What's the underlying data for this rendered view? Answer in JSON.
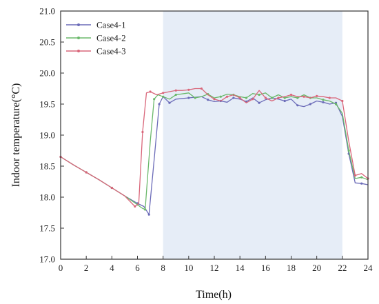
{
  "chart_data": {
    "type": "line",
    "title": "",
    "xlabel": "Time(h)",
    "ylabel": "Indoor temperature(°C)",
    "xlim": [
      0,
      24
    ],
    "ylim": [
      17.0,
      21.0
    ],
    "x_ticks": [
      0,
      2,
      4,
      6,
      8,
      10,
      12,
      14,
      16,
      18,
      20,
      22,
      24
    ],
    "y_ticks": [
      "17.0",
      "17.5",
      "18.0",
      "18.5",
      "19.0",
      "19.5",
      "20.0",
      "20.5",
      "21.0"
    ],
    "grid": false,
    "legend_position": "top-left",
    "shaded_region": {
      "x": [
        8,
        22
      ],
      "color": "#e6edf7"
    },
    "series": [
      {
        "name": "Case4-1",
        "color": "#6b6bb8",
        "x": [
          0,
          1,
          2,
          3,
          4,
          5,
          6,
          6.5,
          6.9,
          7.3,
          7.7,
          8,
          8.5,
          9,
          10,
          11,
          11.5,
          12,
          12.5,
          13,
          13.5,
          14,
          14.5,
          15,
          15.5,
          16,
          16.5,
          17,
          17.5,
          18,
          18.5,
          19,
          19.5,
          20,
          20.5,
          21,
          21.5,
          22,
          22.5,
          23,
          23.5,
          24
        ],
        "y": [
          18.65,
          18.52,
          18.4,
          18.28,
          18.15,
          18.02,
          17.9,
          17.85,
          17.72,
          18.6,
          19.5,
          19.62,
          19.52,
          19.58,
          19.6,
          19.62,
          19.57,
          19.54,
          19.55,
          19.53,
          19.6,
          19.58,
          19.54,
          19.6,
          19.52,
          19.57,
          19.6,
          19.58,
          19.55,
          19.58,
          19.48,
          19.46,
          19.5,
          19.55,
          19.53,
          19.5,
          19.52,
          19.3,
          18.7,
          18.23,
          18.22,
          18.2
        ]
      },
      {
        "name": "Case4-2",
        "color": "#6ab86a",
        "x": [
          0,
          1,
          2,
          3,
          4,
          5,
          6,
          6.3,
          6.6,
          7.0,
          7.3,
          7.6,
          8,
          8.5,
          9,
          10,
          10.5,
          11,
          11.5,
          12,
          12.5,
          13,
          13.5,
          14,
          14.5,
          15,
          15.5,
          16,
          16.5,
          17,
          17.5,
          18,
          18.5,
          19,
          19.5,
          20,
          20.5,
          21,
          21.5,
          22,
          22.5,
          23,
          23.5,
          24
        ],
        "y": [
          18.65,
          18.52,
          18.4,
          18.28,
          18.15,
          18.02,
          17.88,
          17.83,
          17.8,
          18.9,
          19.58,
          19.65,
          19.62,
          19.58,
          19.65,
          19.68,
          19.6,
          19.62,
          19.66,
          19.6,
          19.62,
          19.66,
          19.65,
          19.62,
          19.6,
          19.67,
          19.65,
          19.68,
          19.6,
          19.65,
          19.6,
          19.62,
          19.6,
          19.65,
          19.6,
          19.6,
          19.57,
          19.55,
          19.5,
          19.35,
          18.75,
          18.3,
          18.32,
          18.28
        ]
      },
      {
        "name": "Case4-3",
        "color": "#d9667a",
        "x": [
          0,
          1,
          2,
          3,
          4,
          5,
          5.8,
          6.1,
          6.4,
          6.7,
          7.0,
          7.5,
          8,
          8.5,
          9,
          9.5,
          10,
          10.5,
          11,
          11.5,
          12,
          12.5,
          13,
          13.5,
          14,
          14.5,
          15,
          15.5,
          16,
          16.5,
          17,
          17.5,
          18,
          18.5,
          19,
          19.5,
          20,
          20.5,
          21,
          21.5,
          22,
          22.5,
          23,
          23.5,
          24
        ],
        "y": [
          18.65,
          18.52,
          18.4,
          18.28,
          18.15,
          18.02,
          17.85,
          17.9,
          19.05,
          19.68,
          19.7,
          19.65,
          19.68,
          19.7,
          19.72,
          19.72,
          19.73,
          19.75,
          19.75,
          19.65,
          19.58,
          19.55,
          19.62,
          19.65,
          19.6,
          19.52,
          19.58,
          19.72,
          19.6,
          19.55,
          19.6,
          19.62,
          19.65,
          19.62,
          19.62,
          19.6,
          19.63,
          19.62,
          19.6,
          19.6,
          19.55,
          18.9,
          18.35,
          18.38,
          18.3
        ]
      }
    ]
  }
}
